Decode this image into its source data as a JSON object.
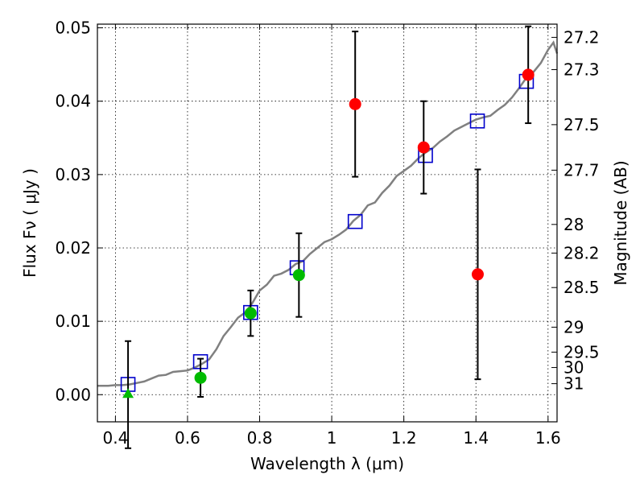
{
  "chart_data": {
    "type": "scatter",
    "xlabel": "Wavelength  λ (μm)",
    "ylabel": "Flux  Fν  ( μJy )",
    "y2label": "Magnitude (AB)",
    "xlim": [
      0.35,
      1.625
    ],
    "ylim": [
      -0.0037,
      0.0505
    ],
    "grid": true,
    "x_ticks": [
      0.4,
      0.6,
      0.8,
      1.0,
      1.2,
      1.4,
      1.6
    ],
    "x_tick_labels": [
      "0.4",
      "0.6",
      "0.8",
      "1",
      "1.2",
      "1.4",
      "1.6"
    ],
    "y_ticks": [
      0.0,
      0.01,
      0.02,
      0.03,
      0.04,
      0.05
    ],
    "y_tick_labels": [
      "0.00",
      "0.01",
      "0.02",
      "0.03",
      "0.04",
      "0.05"
    ],
    "mag_ticks": [
      {
        "label": "27.2",
        "flux": 0.0487
      },
      {
        "label": "27.3",
        "flux": 0.0443
      },
      {
        "label": "27.5",
        "flux": 0.0368
      },
      {
        "label": "27.7",
        "flux": 0.0306
      },
      {
        "label": "28",
        "flux": 0.0232
      },
      {
        "label": "28.2",
        "flux": 0.0193
      },
      {
        "label": "28.5",
        "flux": 0.0146
      },
      {
        "label": "29",
        "flux": 0.0092
      },
      {
        "label": "29.5",
        "flux": 0.0058
      },
      {
        "label": "30",
        "flux": 0.0037
      },
      {
        "label": "31",
        "flux": 0.0015
      }
    ],
    "model_spectrum": {
      "color": "#808080",
      "x": [
        0.35,
        0.38,
        0.4,
        0.42,
        0.44,
        0.46,
        0.48,
        0.5,
        0.52,
        0.54,
        0.56,
        0.58,
        0.6,
        0.62,
        0.64,
        0.66,
        0.68,
        0.7,
        0.72,
        0.74,
        0.76,
        0.78,
        0.8,
        0.82,
        0.84,
        0.86,
        0.88,
        0.9,
        0.92,
        0.94,
        0.96,
        0.98,
        1.0,
        1.02,
        1.04,
        1.06,
        1.08,
        1.1,
        1.12,
        1.14,
        1.16,
        1.18,
        1.2,
        1.22,
        1.24,
        1.26,
        1.28,
        1.3,
        1.32,
        1.34,
        1.36,
        1.38,
        1.4,
        1.42,
        1.44,
        1.46,
        1.48,
        1.5,
        1.52,
        1.54,
        1.56,
        1.58,
        1.6,
        1.615,
        1.625
      ],
      "y": [
        0.0012,
        0.0012,
        0.0013,
        0.0013,
        0.0014,
        0.0016,
        0.0018,
        0.0022,
        0.0026,
        0.0027,
        0.0031,
        0.0032,
        0.0033,
        0.0037,
        0.0042,
        0.0048,
        0.0062,
        0.008,
        0.0092,
        0.0105,
        0.0112,
        0.0125,
        0.0142,
        0.015,
        0.0162,
        0.0165,
        0.017,
        0.0178,
        0.0182,
        0.0192,
        0.02,
        0.0208,
        0.0212,
        0.0218,
        0.0225,
        0.0237,
        0.0245,
        0.0258,
        0.0262,
        0.0275,
        0.0285,
        0.0298,
        0.0305,
        0.0312,
        0.0322,
        0.033,
        0.0336,
        0.0345,
        0.0352,
        0.036,
        0.0365,
        0.037,
        0.0375,
        0.0378,
        0.038,
        0.0388,
        0.0395,
        0.0405,
        0.0418,
        0.0432,
        0.044,
        0.0452,
        0.047,
        0.048,
        0.0465
      ]
    },
    "model_photometry": {
      "color": "#0000cc",
      "marker": "open-square",
      "x": [
        0.435,
        0.636,
        0.775,
        0.904,
        1.065,
        1.26,
        1.404,
        1.54
      ],
      "y": [
        0.0014,
        0.0045,
        0.0112,
        0.0173,
        0.0236,
        0.0326,
        0.0373,
        0.0427
      ]
    },
    "observed": [
      {
        "x": 0.435,
        "y": 0.0,
        "err": 0.0073,
        "marker": "triangle",
        "color": "#00bb00"
      },
      {
        "x": 0.636,
        "y": 0.0023,
        "err": 0.0026,
        "marker": "circle",
        "color": "#00bb00"
      },
      {
        "x": 0.775,
        "y": 0.0111,
        "err": 0.0031,
        "marker": "circle",
        "color": "#00bb00"
      },
      {
        "x": 0.909,
        "y": 0.0163,
        "err": 0.0057,
        "marker": "circle",
        "color": "#00bb00"
      },
      {
        "x": 1.065,
        "y": 0.0396,
        "err": 0.0099,
        "marker": "circle",
        "color": "#ff0000"
      },
      {
        "x": 1.255,
        "y": 0.0337,
        "err": 0.0063,
        "marker": "circle",
        "color": "#ff0000"
      },
      {
        "x": 1.405,
        "y": 0.0164,
        "err": 0.0143,
        "marker": "circle",
        "color": "#ff0000"
      },
      {
        "x": 1.545,
        "y": 0.0436,
        "err": 0.0066,
        "marker": "circle",
        "color": "#ff0000"
      }
    ]
  }
}
